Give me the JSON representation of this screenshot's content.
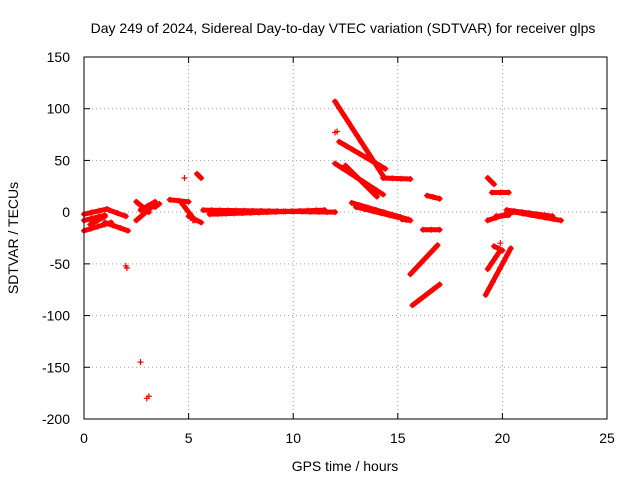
{
  "chart_data": {
    "type": "scatter",
    "title": "Day 249 of 2024, Sidereal Day-to-day VTEC variation (SDTVAR) for receiver glps",
    "xlabel": "GPS time / hours",
    "ylabel": "SDTVAR / TECUs",
    "xlim": [
      0,
      25
    ],
    "ylim": [
      -200,
      150
    ],
    "xticks": [
      0,
      5,
      10,
      15,
      20,
      25
    ],
    "yticks": [
      -200,
      -150,
      -100,
      -50,
      0,
      50,
      100,
      150
    ],
    "grid": true,
    "marker": "+",
    "series_color": "#ff0000",
    "segments": [
      {
        "x0": 0.0,
        "y0": -2,
        "x1": 1.1,
        "y1": 3
      },
      {
        "x0": 0.0,
        "y0": -8,
        "x1": 1.0,
        "y1": -3
      },
      {
        "x0": 0.0,
        "y0": -18,
        "x1": 1.3,
        "y1": -10
      },
      {
        "x0": 0.3,
        "y0": -12,
        "x1": 1.0,
        "y1": -4
      },
      {
        "x0": 1.0,
        "y0": -10,
        "x1": 2.1,
        "y1": -18
      },
      {
        "x0": 1.2,
        "y0": 2,
        "x1": 2.0,
        "y1": -4
      },
      {
        "x0": 2.5,
        "y0": -8,
        "x1": 3.3,
        "y1": 6
      },
      {
        "x0": 2.5,
        "y0": 10,
        "x1": 3.1,
        "y1": 0
      },
      {
        "x0": 2.7,
        "y0": 2,
        "x1": 3.4,
        "y1": 10
      },
      {
        "x0": 3.4,
        "y0": 5,
        "x1": 3.6,
        "y1": 8
      },
      {
        "x0": 4.1,
        "y0": 12,
        "x1": 5.0,
        "y1": 10
      },
      {
        "x0": 4.7,
        "y0": 8,
        "x1": 5.3,
        "y1": -8
      },
      {
        "x0": 5.0,
        "y0": -4,
        "x1": 5.6,
        "y1": -10
      },
      {
        "x0": 5.4,
        "y0": 37,
        "x1": 5.6,
        "y1": 33
      },
      {
        "x0": 5.7,
        "y0": 2,
        "x1": 12.0,
        "y1": 0
      },
      {
        "x0": 6.0,
        "y0": -2,
        "x1": 11.5,
        "y1": 2
      },
      {
        "x0": 12.0,
        "y0": 107,
        "x1": 14.3,
        "y1": 35
      },
      {
        "x0": 12.2,
        "y0": 68,
        "x1": 14.4,
        "y1": 42
      },
      {
        "x0": 12.0,
        "y0": 47,
        "x1": 14.3,
        "y1": 17
      },
      {
        "x0": 12.5,
        "y0": 45,
        "x1": 14.0,
        "y1": 15
      },
      {
        "x0": 14.3,
        "y0": 33,
        "x1": 15.6,
        "y1": 32
      },
      {
        "x0": 12.8,
        "y0": 9,
        "x1": 15.5,
        "y1": -7
      },
      {
        "x0": 13.0,
        "y0": 5,
        "x1": 15.0,
        "y1": -5
      },
      {
        "x0": 15.2,
        "y0": -7,
        "x1": 15.6,
        "y1": -8
      },
      {
        "x0": 15.6,
        "y0": -60,
        "x1": 16.9,
        "y1": -32
      },
      {
        "x0": 15.7,
        "y0": -90,
        "x1": 17.0,
        "y1": -70
      },
      {
        "x0": 16.2,
        "y0": -17,
        "x1": 17.0,
        "y1": -17
      },
      {
        "x0": 16.4,
        "y0": 16,
        "x1": 17.0,
        "y1": 13
      },
      {
        "x0": 19.2,
        "y0": -80,
        "x1": 20.4,
        "y1": -35
      },
      {
        "x0": 19.3,
        "y0": -55,
        "x1": 19.9,
        "y1": -37
      },
      {
        "x0": 19.6,
        "y0": -33,
        "x1": 20.0,
        "y1": -37
      },
      {
        "x0": 19.3,
        "y0": 33,
        "x1": 19.6,
        "y1": 27
      },
      {
        "x0": 19.5,
        "y0": 19,
        "x1": 20.3,
        "y1": 19
      },
      {
        "x0": 19.3,
        "y0": -8,
        "x1": 20.5,
        "y1": 0
      },
      {
        "x0": 19.7,
        "y0": -4,
        "x1": 20.3,
        "y1": -3
      },
      {
        "x0": 20.2,
        "y0": 2,
        "x1": 22.4,
        "y1": -4
      },
      {
        "x0": 20.6,
        "y0": 0,
        "x1": 22.8,
        "y1": -8
      }
    ],
    "points": [
      {
        "x": 2.0,
        "y": -52
      },
      {
        "x": 2.05,
        "y": -54
      },
      {
        "x": 2.7,
        "y": -145
      },
      {
        "x": 3.0,
        "y": -180
      },
      {
        "x": 3.1,
        "y": -178
      },
      {
        "x": 4.8,
        "y": 33
      },
      {
        "x": 12.0,
        "y": 77
      },
      {
        "x": 12.1,
        "y": 78
      },
      {
        "x": 5.2,
        "y": -8
      },
      {
        "x": 19.9,
        "y": -30
      }
    ]
  }
}
